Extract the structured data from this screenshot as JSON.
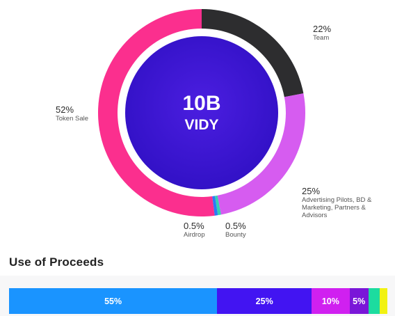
{
  "chart_data": [
    {
      "type": "pie",
      "center_value": "10B",
      "center_label": "VIDY",
      "slices": [
        {
          "label": "Team",
          "pct_label": "22%",
          "value": 22,
          "color": "#2d2d2f"
        },
        {
          "label": "Advertising Pilots, BD & Marketing, Partners & Advisors",
          "pct_label": "25%",
          "value": 25,
          "color": "#d65cf0"
        },
        {
          "label": "Bounty",
          "pct_label": "0.5%",
          "value": 0.5,
          "color": "#36d1b3"
        },
        {
          "label": "Airdrop",
          "pct_label": "0.5%",
          "value": 0.5,
          "color": "#2b7cf6"
        },
        {
          "label": "Token Sale",
          "pct_label": "52%",
          "value": 52,
          "color": "#fb2f8e"
        }
      ],
      "inner_color": "#3a16d6",
      "ring_bg": "#e9e9ee"
    },
    {
      "type": "bar",
      "title": "Use of Proceeds",
      "orientation": "stacked-horizontal",
      "segments": [
        {
          "label": "55%",
          "value": 55,
          "color": "#1a94ff"
        },
        {
          "label": "25%",
          "value": 25,
          "color": "#4214f2"
        },
        {
          "label": "10%",
          "value": 10,
          "color": "#d020f0"
        },
        {
          "label": "5%",
          "value": 5,
          "color": "#7a16d8"
        },
        {
          "label": "",
          "value": 3,
          "color": "#1cdc9f"
        },
        {
          "label": "",
          "value": 2,
          "color": "#f1f212"
        }
      ]
    }
  ]
}
